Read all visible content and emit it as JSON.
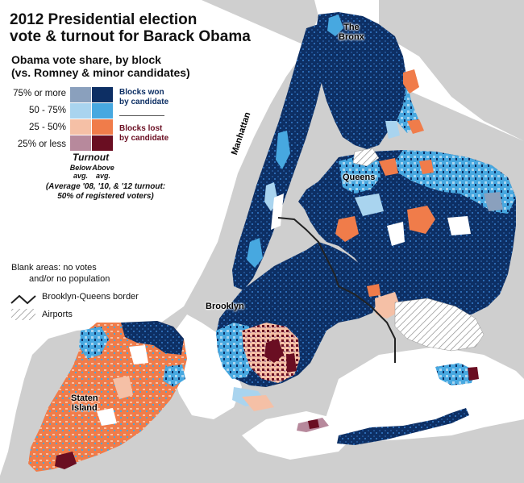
{
  "title": {
    "line1": "2012 Presidential election",
    "line2": "vote & turnout for Barack Obama"
  },
  "subtitle": {
    "line1": "Obama vote share, by block",
    "line2": "(vs. Romney & minor candidates)"
  },
  "legend": {
    "rows": [
      {
        "label": "75% or more",
        "below": "#8aa0bd",
        "above": "#0d2f64"
      },
      {
        "label": "50 - 75%",
        "below": "#a9d4ef",
        "above": "#47a8e0"
      },
      {
        "label": "25 - 50%",
        "below": "#f5c0a6",
        "above": "#f07c4a"
      },
      {
        "label": "25% or less",
        "below": "#b7899c",
        "above": "#6a0e22"
      }
    ],
    "won_line1": "Blocks won",
    "won_line2": "by candidate",
    "lost_line1": "Blocks lost",
    "lost_line2": "by candidate",
    "turnout_title": "Turnout",
    "below_line1": "Below",
    "below_line2": "avg.",
    "above_line1": "Above",
    "above_line2": "avg.",
    "turnout_note_line1": "(Average '08, '10, & '12 turnout:",
    "turnout_note_line2": "50% of registered voters)",
    "blank_line1": "Blank areas: no votes",
    "blank_line2": "and/or no population",
    "border_label": "Brooklyn-Queens border",
    "airports_label": "Airports"
  },
  "places": {
    "bronx_line1": "The",
    "bronx_line2": "Bronx",
    "manhattan": "Manhattan",
    "queens": "Queens",
    "brooklyn": "Brooklyn",
    "staten_line1": "Staten",
    "staten_line2": "Island"
  },
  "colors": {
    "land": "#cfcfcf",
    "water": "#ffffff",
    "blank_area": "#ffffff",
    "border_line": "#222222"
  }
}
